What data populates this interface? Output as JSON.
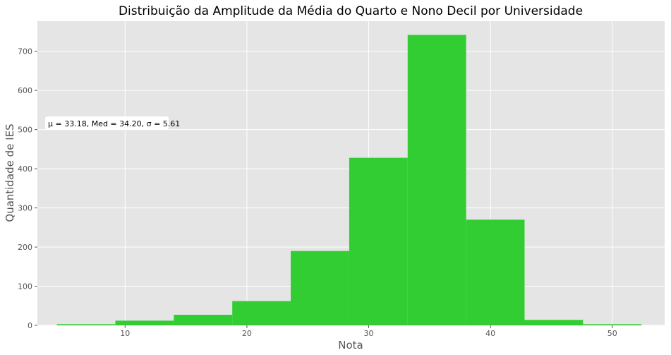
{
  "chart_data": {
    "type": "bar",
    "subtype": "histogram",
    "title": "Distribuição da Amplitude da Média do Quarto e Nono Decil por Universidade",
    "xlabel": "Nota",
    "ylabel": "Quantidade de IES",
    "xlim": [
      2.8,
      54.3
    ],
    "ylim": [
      0,
      777
    ],
    "xticks": [
      10,
      20,
      30,
      40,
      50
    ],
    "yticks": [
      0,
      100,
      200,
      300,
      400,
      500,
      600,
      700
    ],
    "bins": [
      {
        "x0": 4.4,
        "x1": 9.2,
        "value": 3
      },
      {
        "x0": 9.2,
        "x1": 14.0,
        "value": 12
      },
      {
        "x0": 14.0,
        "x1": 18.8,
        "value": 27
      },
      {
        "x0": 18.8,
        "x1": 23.6,
        "value": 62
      },
      {
        "x0": 23.6,
        "x1": 28.4,
        "value": 190
      },
      {
        "x0": 28.4,
        "x1": 33.2,
        "value": 428
      },
      {
        "x0": 33.2,
        "x1": 38.0,
        "value": 742
      },
      {
        "x0": 38.0,
        "x1": 42.8,
        "value": 270
      },
      {
        "x0": 42.8,
        "x1": 47.6,
        "value": 14
      },
      {
        "x0": 47.6,
        "x1": 52.4,
        "value": 3
      }
    ],
    "grid": true,
    "colors": {
      "bar": "#32CD32",
      "background": "#E5E5E5",
      "grid": "#FFFFFF"
    },
    "annotation": "μ = 33.18,  Med = 34.20,  σ = 5.61"
  }
}
